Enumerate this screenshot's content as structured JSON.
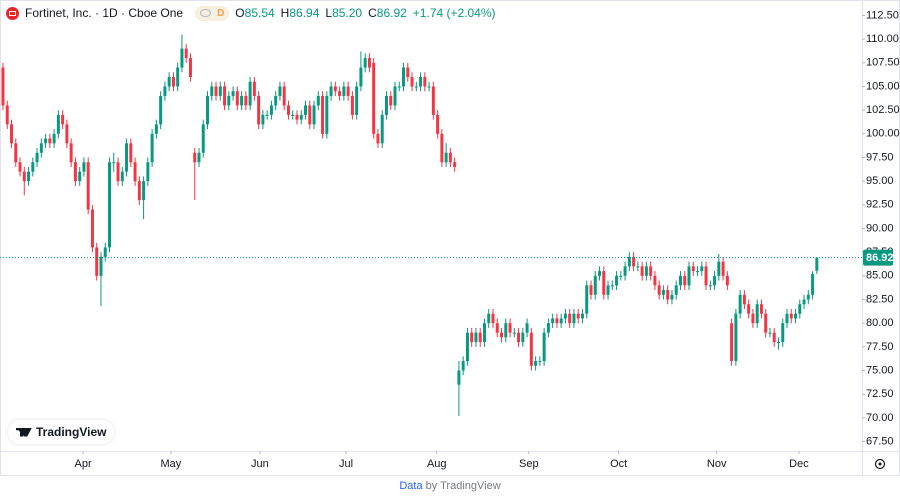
{
  "chart_data": {
    "type": "candlestick",
    "title": "Fortinet, Inc. · 1D · Cboe One",
    "interval_badge": "D",
    "ohlc_labels": [
      "O",
      "H",
      "L",
      "C"
    ],
    "ohlc_texts": [
      "85.54",
      "86.94",
      "85.20",
      "86.92"
    ],
    "change_text": "+1.74 (+2.04%)",
    "last_price_label": "86.92",
    "logo_text": "TradingView",
    "footer": {
      "link": "Data",
      "text": "by TradingView"
    },
    "up_color": "#089981",
    "down_color": "#f23645",
    "xlim": [
      -0.7,
      201.6
    ],
    "xticks": [
      {
        "value": 18.8,
        "label": "Apr"
      },
      {
        "value": 39.4,
        "label": "May"
      },
      {
        "value": 60.3,
        "label": "Jun"
      },
      {
        "value": 80.5,
        "label": "Jul"
      },
      {
        "value": 101.8,
        "label": "Aug"
      },
      {
        "value": 123.4,
        "label": "Sep"
      },
      {
        "value": 144.5,
        "label": "Oct"
      },
      {
        "value": 167.5,
        "label": "Nov"
      },
      {
        "value": 186.8,
        "label": "Dec"
      }
    ],
    "ylim": [
      66.5,
      113.5
    ],
    "yticks": [
      {
        "value": 67.5,
        "label": "67.50"
      },
      {
        "value": 70,
        "label": "70.00"
      },
      {
        "value": 72.5,
        "label": "72.50"
      },
      {
        "value": 75,
        "label": "75.00"
      },
      {
        "value": 77.5,
        "label": "77.50"
      },
      {
        "value": 80,
        "label": "80.00"
      },
      {
        "value": 82.5,
        "label": "82.50"
      },
      {
        "value": 85,
        "label": "85.00"
      },
      {
        "value": 87.5,
        "label": "87.50"
      },
      {
        "value": 90,
        "label": "90.00"
      },
      {
        "value": 92.5,
        "label": "92.50"
      },
      {
        "value": 95,
        "label": "95.00"
      },
      {
        "value": 97.5,
        "label": "97.50"
      },
      {
        "value": 100,
        "label": "100.00"
      },
      {
        "value": 102.5,
        "label": "102.50"
      },
      {
        "value": 105,
        "label": "105.00"
      },
      {
        "value": 107.5,
        "label": "107.50"
      },
      {
        "value": 110,
        "label": "110.00"
      },
      {
        "value": 112.5,
        "label": "112.50"
      }
    ],
    "series": [
      {
        "open": [
          107,
          103,
          101,
          99,
          97,
          96,
          95,
          96,
          97,
          98,
          99,
          99.5,
          99,
          100,
          102,
          101,
          99,
          97,
          95,
          96,
          97,
          92,
          88,
          85,
          87,
          88,
          97,
          97,
          95,
          96,
          99,
          97,
          95,
          93,
          95,
          97,
          100,
          101,
          104,
          105,
          106,
          105,
          107,
          109,
          108,
          98,
          97,
          98,
          101,
          104,
          105,
          104,
          105,
          103,
          104,
          104.5,
          103,
          104,
          103,
          105.5,
          104,
          101,
          102,
          102,
          103,
          104,
          105,
          103,
          102,
          102,
          101.5,
          102,
          103,
          101,
          103,
          104,
          100,
          104,
          105,
          104.5,
          104,
          105,
          104,
          102,
          105,
          107,
          108,
          107.5,
          100,
          99,
          102,
          104,
          103,
          105,
          105,
          107,
          106,
          105,
          105,
          106,
          105,
          105,
          102,
          100,
          97,
          98,
          97,
          73.5,
          75,
          76,
          79,
          78,
          79,
          78,
          80,
          81,
          80,
          79,
          78.5,
          80,
          79,
          79,
          78,
          79,
          79,
          75.5,
          76,
          76,
          79,
          80,
          80.5,
          80,
          80.5,
          81,
          80,
          81,
          80.5,
          81,
          84,
          83,
          85,
          85.5,
          83,
          84,
          84,
          85,
          85,
          86,
          87,
          86,
          86,
          85,
          86,
          85,
          84,
          83,
          83.5,
          82.5,
          83,
          84,
          85,
          84,
          86,
          85.5,
          85.5,
          86,
          84,
          84,
          85,
          86.5,
          85,
          80,
          76,
          81,
          83,
          82,
          81,
          80,
          82,
          81,
          79,
          79,
          78,
          78,
          80,
          81,
          80.5,
          81,
          82,
          82.5,
          83,
          85.54
        ],
        "high": [
          107.5,
          103.5,
          101.5,
          99.5,
          97.5,
          96.5,
          96.5,
          97.5,
          98.5,
          99.5,
          100,
          100,
          100.5,
          102.5,
          102.5,
          101.5,
          99.5,
          97.5,
          96.5,
          97.5,
          97.5,
          92.5,
          88.5,
          87.5,
          88.5,
          97.5,
          98,
          97.5,
          96.5,
          99.5,
          99.5,
          97.5,
          95.5,
          95.5,
          97.5,
          100.5,
          101.5,
          104.5,
          105.5,
          106.5,
          106.5,
          107.5,
          110.5,
          109.5,
          108.5,
          98.5,
          98.5,
          101.5,
          104.5,
          105.5,
          105.5,
          105.5,
          105.5,
          104.5,
          105,
          105,
          104.5,
          104.5,
          106,
          106,
          104.5,
          102.5,
          102.5,
          103.5,
          104.5,
          105.5,
          105.5,
          103.5,
          102.5,
          102.5,
          102.5,
          103.5,
          103.5,
          103.5,
          104.5,
          104.5,
          104.5,
          105.5,
          105.5,
          105,
          105.5,
          105.5,
          104.5,
          105.5,
          108.7,
          108.5,
          108.5,
          108,
          100.5,
          102.5,
          104.5,
          104.5,
          105.5,
          105.5,
          107.5,
          107.5,
          106.5,
          105.5,
          106.5,
          106.5,
          105.5,
          105.5,
          102.5,
          100.5,
          99,
          98.5,
          97.5,
          76,
          76.5,
          79.5,
          79.5,
          79.5,
          79.5,
          80.5,
          81.5,
          81.5,
          80.5,
          79.5,
          80.5,
          80.5,
          79.5,
          79.5,
          79.5,
          80.5,
          79.5,
          76.5,
          76.5,
          79.5,
          80.5,
          81,
          81,
          81,
          81.5,
          81.5,
          81.5,
          81.5,
          81.5,
          84.5,
          84.5,
          85.5,
          86,
          86,
          84.5,
          84.5,
          85.5,
          85.5,
          86.5,
          87.5,
          87.5,
          86.5,
          86.5,
          86.5,
          86.5,
          85.5,
          84.5,
          84,
          84,
          83.5,
          84.5,
          85.5,
          85.5,
          86.5,
          86.5,
          86,
          86.5,
          86.5,
          84.5,
          85.5,
          87.3,
          87,
          85.5,
          80.5,
          81.5,
          83.5,
          83.5,
          82.5,
          81.5,
          82.5,
          82.5,
          81.5,
          79.5,
          79.5,
          78.5,
          80.5,
          81.5,
          81.5,
          81.5,
          82.5,
          83,
          83.5,
          85.5,
          86.94
        ],
        "low": [
          102.5,
          100.5,
          98.5,
          96.5,
          95.5,
          93.5,
          94.5,
          95.5,
          96.5,
          97.5,
          98.5,
          98.5,
          98.5,
          99.5,
          100.5,
          98.5,
          96.5,
          94.5,
          94.5,
          95.5,
          91.5,
          87.5,
          84.5,
          81.8,
          86.5,
          87.5,
          96,
          94.5,
          94.5,
          95.5,
          96.5,
          94.5,
          92.5,
          91,
          94.5,
          96.5,
          99.5,
          100.5,
          103.5,
          104.5,
          104.5,
          104.5,
          106.5,
          107.5,
          105.5,
          93,
          96.5,
          97.5,
          100.5,
          103.5,
          103.5,
          103.5,
          102.5,
          102.5,
          103.5,
          102.5,
          102.5,
          102.5,
          102.5,
          103.5,
          100.5,
          100.5,
          101.5,
          101.5,
          102.5,
          103.5,
          102.5,
          101.5,
          101.5,
          101,
          101,
          101.5,
          100.5,
          100.5,
          102.5,
          99.5,
          99.5,
          103.5,
          104,
          103.5,
          103.5,
          103.5,
          101.5,
          101.5,
          104.5,
          106.5,
          106.5,
          99.5,
          98.5,
          98.5,
          101.5,
          102.5,
          102.5,
          104.5,
          104.5,
          105.5,
          104.5,
          104.5,
          104.5,
          104.5,
          104.5,
          101.5,
          99.5,
          96.5,
          96.5,
          96.5,
          96,
          70.2,
          74.5,
          75.5,
          77.5,
          77.5,
          77.5,
          77.5,
          79.5,
          79.5,
          78.5,
          78,
          78,
          78.5,
          78.5,
          77.5,
          77.5,
          78.5,
          75,
          75,
          75.5,
          75.5,
          78.5,
          79.5,
          79.5,
          79.5,
          80,
          79.5,
          79.5,
          80,
          80,
          80.5,
          82.5,
          82.5,
          84.5,
          82.5,
          82.5,
          83.5,
          83.5,
          84.5,
          84.5,
          85.5,
          85.5,
          85.5,
          84.5,
          84.5,
          84.5,
          83.5,
          82.5,
          82.5,
          82,
          82,
          82.5,
          83.5,
          83.5,
          83.5,
          85,
          85,
          85,
          83.5,
          83.5,
          83.5,
          84.5,
          84.5,
          83.5,
          75.5,
          75.5,
          80.5,
          81.5,
          80.5,
          79.5,
          79.5,
          80.5,
          78.5,
          78.5,
          77.5,
          77.2,
          77.5,
          79.5,
          80,
          80,
          80.5,
          81.5,
          82,
          82.5,
          85.2
        ],
        "close": [
          103,
          101,
          99,
          97,
          96,
          95,
          96,
          97,
          98,
          99,
          99.5,
          99,
          100,
          102,
          101,
          99,
          97,
          95,
          96,
          97,
          92,
          88,
          85,
          87,
          88,
          97,
          97,
          95,
          96,
          99,
          97,
          95,
          93,
          95,
          97,
          100,
          101,
          104,
          105,
          106,
          105,
          107,
          109,
          108,
          106,
          97,
          98,
          101,
          104,
          105,
          104,
          105,
          103,
          104,
          104.5,
          103,
          104,
          103,
          105.5,
          104,
          101,
          102,
          102,
          103,
          104,
          105,
          103,
          102,
          102,
          101.5,
          102,
          103,
          101,
          103,
          104,
          100,
          104,
          105,
          104.5,
          104,
          105,
          104,
          102,
          105,
          107,
          108,
          107,
          100,
          99,
          102,
          104,
          103,
          105,
          105,
          107,
          106,
          105,
          105,
          106,
          105,
          105,
          102,
          100,
          97,
          98,
          97,
          96.5,
          75,
          76,
          79,
          78,
          79,
          78,
          80,
          81,
          80,
          79,
          78.5,
          80,
          79,
          79,
          78,
          79,
          80,
          75.5,
          76,
          76,
          79,
          80,
          80.5,
          80,
          80.5,
          81,
          80,
          81,
          80.5,
          81,
          84,
          83,
          85,
          85.5,
          83,
          84,
          84,
          85,
          85,
          86,
          87,
          86,
          86,
          85,
          86,
          85,
          84,
          83,
          83.5,
          82.5,
          83,
          84,
          85,
          84,
          86,
          85.5,
          85.5,
          86,
          84,
          84,
          85,
          86.5,
          85,
          84,
          76,
          81,
          83,
          82,
          81,
          80,
          82,
          81,
          79,
          79,
          78,
          78,
          80,
          81,
          80.5,
          81,
          82,
          82.5,
          83,
          85.18,
          86.92
        ]
      }
    ]
  }
}
